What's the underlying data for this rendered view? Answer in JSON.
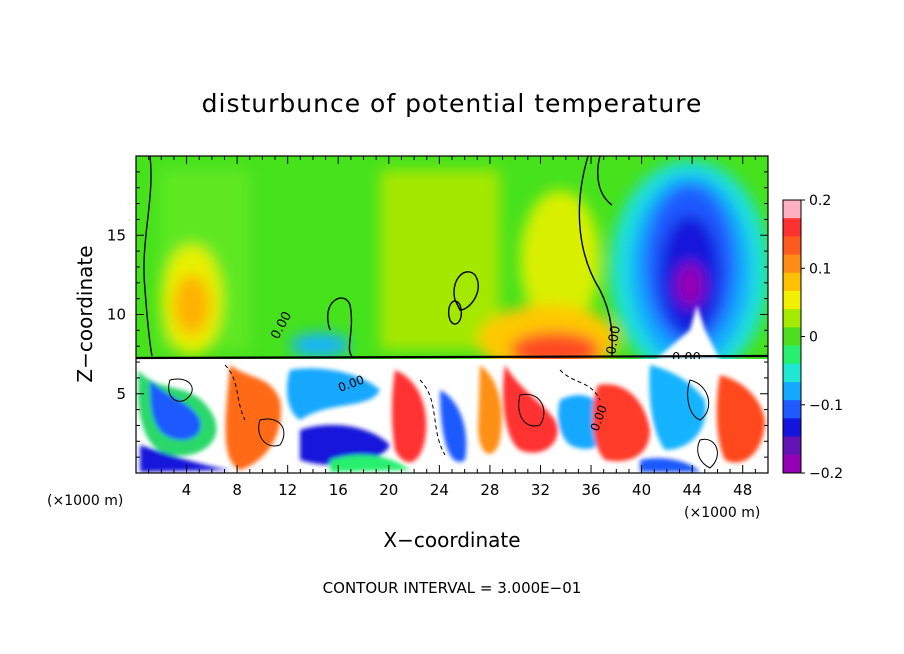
{
  "chart_data": {
    "type": "heatmap",
    "title": "disturbunce of potential temperature",
    "xlabel": "X−coordinate",
    "ylabel": "Z−coordinate",
    "x_unit_left": "(×1000 m)",
    "x_unit_right": "(×1000 m)",
    "footer": "CONTOUR INTERVAL = 3.000E−01",
    "xlim": [
      0,
      50
    ],
    "ylim": [
      0,
      20
    ],
    "x_ticks": [
      4,
      8,
      12,
      16,
      20,
      24,
      28,
      32,
      36,
      40,
      44,
      48
    ],
    "x_tick_labels": [
      "4",
      "8",
      "12",
      "16",
      "20",
      "24",
      "28",
      "32",
      "36",
      "40",
      "44",
      "48"
    ],
    "y_ticks": [
      5,
      10,
      15
    ],
    "y_tick_labels": [
      "5",
      "10",
      "15"
    ],
    "colorbar": {
      "range": [
        -0.2,
        0.2
      ],
      "tick_values": [
        0.2,
        0.1,
        0,
        -0.1,
        -0.2
      ],
      "tick_labels": [
        "0.2",
        "0.1",
        "0",
        "−0.1",
        "−0.2"
      ],
      "colors": [
        "#ffb0c0",
        "#ff3030",
        "#ff5a1e",
        "#ff8c14",
        "#ffc000",
        "#f0f000",
        "#a6ea00",
        "#4ddf1f",
        "#26f06e",
        "#1ee8d2",
        "#14a8ff",
        "#1e5aff",
        "#1414dc",
        "#6414b4",
        "#9600b4"
      ]
    },
    "contour_labels": [
      "0.00",
      "0.00",
      "0.00",
      "0.00",
      "0.00"
    ],
    "field_regions": [
      {
        "x": [
          0,
          50
        ],
        "z": [
          7.3,
          20
        ],
        "value": 0.02
      },
      {
        "x": [
          2,
          7
        ],
        "z": [
          8,
          13
        ],
        "value": 0.1
      },
      {
        "x": [
          29,
          37
        ],
        "z": [
          7.3,
          10
        ],
        "value": 0.15
      },
      {
        "x": [
          39,
          49
        ],
        "z": [
          8,
          18
        ],
        "value": -0.15
      },
      {
        "x": [
          43,
          45
        ],
        "z": [
          10.5,
          13.5
        ],
        "value": -0.2
      },
      {
        "x": [
          0,
          50
        ],
        "z": [
          0,
          7.3
        ],
        "value": "turbulent"
      }
    ]
  }
}
